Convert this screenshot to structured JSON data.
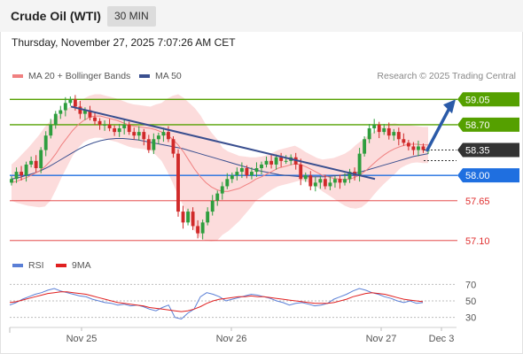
{
  "header": {
    "title": "Crude Oil (WTI)",
    "timeframe": "30 MIN",
    "datetime": "Thursday, November 27, 2025 7:07:26 AM CET"
  },
  "legend": {
    "ma20_label": "MA 20 + Bollinger Bands",
    "ma50_label": "MA 50",
    "ma20_color": "#f08080",
    "ma50_color": "#3a4f8f",
    "credit": "Research © 2025 Trading Central"
  },
  "rsi_legend": {
    "rsi_label": "RSI",
    "ma9_label": "9MA",
    "rsi_color": "#5a7fd6",
    "ma9_color": "#e02020"
  },
  "chart_data": [
    {
      "type": "candlestick",
      "ylim": [
        57.0,
        59.2
      ],
      "x_ticks": [
        "Nov 25",
        "Nov 26",
        "Nov 27",
        "Dec 3"
      ],
      "last_price": 58.35,
      "levels": [
        {
          "value": 59.05,
          "label": "59.05",
          "kind": "resistance",
          "color": "#55a000"
        },
        {
          "value": 58.7,
          "label": "58.70",
          "kind": "resistance",
          "color": "#55a000"
        },
        {
          "value": 58.35,
          "label": "58.35",
          "kind": "last",
          "color": "#333333"
        },
        {
          "value": 58.0,
          "label": "58.00",
          "kind": "pivot",
          "color": "#1f6fe0"
        },
        {
          "value": 57.65,
          "label": "57.65",
          "kind": "support",
          "color": "#e03030"
        },
        {
          "value": 57.1,
          "label": "57.10",
          "kind": "support",
          "color": "#e03030"
        }
      ],
      "close_series": [
        57.95,
        58.05,
        58.0,
        58.15,
        58.2,
        58.1,
        58.35,
        58.55,
        58.7,
        58.85,
        58.9,
        59.0,
        59.05,
        58.95,
        58.85,
        58.9,
        58.8,
        58.75,
        58.7,
        58.7,
        58.65,
        58.6,
        58.65,
        58.7,
        58.6,
        58.55,
        58.6,
        58.5,
        58.35,
        58.5,
        58.55,
        58.6,
        58.5,
        58.3,
        57.5,
        57.35,
        57.5,
        57.3,
        57.2,
        57.35,
        57.5,
        57.65,
        57.75,
        57.85,
        57.95,
        58.0,
        58.05,
        58.1,
        58.0,
        58.05,
        58.1,
        58.15,
        58.2,
        58.15,
        58.25,
        58.2,
        58.2,
        58.25,
        58.15,
        57.95,
        58.0,
        57.85,
        57.9,
        57.95,
        57.85,
        57.9,
        57.95,
        57.9,
        57.95,
        58.05,
        58.0,
        58.3,
        58.5,
        58.65,
        58.7,
        58.6,
        58.65,
        58.55,
        58.6,
        58.5,
        58.45,
        58.4,
        58.35,
        58.4,
        58.35,
        58.35
      ],
      "ma20": [
        57.9,
        57.92,
        57.95,
        57.98,
        58.02,
        58.06,
        58.12,
        58.2,
        58.3,
        58.42,
        58.52,
        58.62,
        58.7,
        58.76,
        58.8,
        58.82,
        58.82,
        58.8,
        58.78,
        58.76,
        58.73,
        58.7,
        58.68,
        58.67,
        58.66,
        58.65,
        58.63,
        58.6,
        58.56,
        58.5,
        58.42,
        58.32,
        58.2,
        58.08,
        57.98,
        57.9,
        57.84,
        57.8,
        57.78,
        57.78,
        57.8,
        57.82,
        57.86,
        57.9,
        57.95,
        57.98,
        58.02,
        58.06,
        58.1,
        58.12,
        58.14,
        58.16,
        58.15,
        58.12,
        58.08,
        58.04,
        58.0,
        57.98,
        57.96,
        57.95,
        57.94,
        57.95,
        57.98,
        58.02,
        58.08,
        58.15,
        58.22,
        58.28,
        58.33,
        58.37,
        58.4,
        58.42,
        58.43,
        58.43,
        58.42,
        58.42
      ],
      "ma50": [
        57.95,
        57.97,
        58.0,
        58.03,
        58.07,
        58.12,
        58.18,
        58.24,
        58.3,
        58.36,
        58.41,
        58.45,
        58.48,
        58.5,
        58.51,
        58.51,
        58.5,
        58.49,
        58.47,
        58.45,
        58.43,
        58.41,
        58.39,
        58.37,
        58.34,
        58.31,
        58.28,
        58.25,
        58.22,
        58.19,
        58.16,
        58.13,
        58.1,
        58.07,
        58.05,
        58.03,
        58.01,
        58.0,
        57.99,
        57.98,
        57.98,
        57.98,
        57.98,
        57.99,
        58.0,
        58.01,
        58.03,
        58.05,
        58.08,
        58.11,
        58.14,
        58.17,
        58.2,
        58.23,
        58.26,
        58.28,
        58.3
      ],
      "trendline": {
        "from": 58.95,
        "to": 57.95
      },
      "projection": {
        "from": 58.35,
        "to": 59.05
      }
    },
    {
      "type": "line",
      "name": "RSI",
      "ylim": [
        20,
        80
      ],
      "y_ticks": [
        70,
        50,
        30
      ],
      "rsi": [
        45,
        48,
        52,
        55,
        58,
        60,
        63,
        65,
        62,
        60,
        58,
        56,
        55,
        52,
        50,
        48,
        47,
        45,
        46,
        44,
        45,
        43,
        40,
        38,
        42,
        45,
        30,
        28,
        35,
        40,
        55,
        60,
        58,
        55,
        50,
        52,
        54,
        56,
        58,
        57,
        55,
        53,
        50,
        48,
        45,
        47,
        48,
        46,
        44,
        45,
        47,
        52,
        55,
        58,
        62,
        65,
        63,
        60,
        58,
        55,
        53,
        50,
        48,
        50,
        47,
        48
      ],
      "ma9": [
        48,
        49,
        51,
        53,
        55,
        57,
        59,
        60,
        61,
        61,
        60,
        59,
        58,
        56,
        54,
        52,
        50,
        48,
        47,
        46,
        45,
        44,
        42,
        41,
        40,
        39,
        38,
        37,
        38,
        40,
        43,
        47,
        50,
        52,
        53,
        54,
        55,
        55,
        56,
        55,
        55,
        54,
        53,
        52,
        51,
        50,
        49,
        48,
        47,
        47,
        47,
        48,
        50,
        52,
        55,
        57,
        59,
        60,
        59,
        58,
        56,
        54,
        52,
        51,
        50,
        49
      ]
    }
  ]
}
